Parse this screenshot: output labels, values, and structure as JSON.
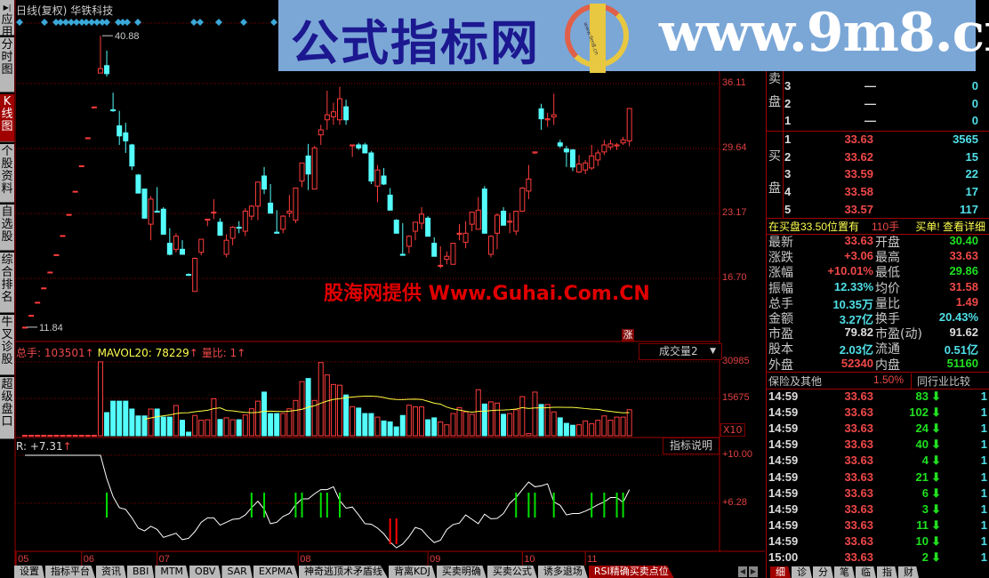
{
  "window": {
    "chart_type": "日线(复权)",
    "stock_name": "华铁科技"
  },
  "left_tabs": [
    {
      "label": "应用",
      "icon": "play-end-icon"
    },
    {
      "label": "分时图"
    },
    {
      "label": "K线图",
      "active": true
    },
    {
      "label": "个股资料"
    },
    {
      "label": "自选股"
    },
    {
      "label": "综合排名"
    },
    {
      "label": "牛叉诊股"
    },
    {
      "label": "超级盘口"
    }
  ],
  "banner": {
    "name": "公式指标网",
    "url": "www.9m8.cn",
    "logo_text": "www.9m8.cn"
  },
  "watermark": "股海网提供 Www.Guhai.Com.CN",
  "colors": {
    "up": "#ff3c3c",
    "down": "#54fcfc",
    "ma": "#ffff40",
    "rsi_line": "#ffffff",
    "buy_signal": "#00e000",
    "sell_signal": "#ff0000",
    "grid": "#8a0000",
    "diamond": "#3aa8d8"
  },
  "price_chart": {
    "axis_ticks": [
      "36.11",
      "29.64",
      "23.17",
      "16.70"
    ],
    "high_label": "40.88",
    "low_label": "11.84",
    "limit_badge": "涨",
    "candles": [
      [
        11.84,
        11.84,
        11.84,
        11.84
      ],
      [
        13.02,
        13.02,
        13.02,
        13.02
      ],
      [
        14.32,
        14.32,
        14.32,
        14.32
      ],
      [
        15.75,
        15.75,
        15.75,
        15.75
      ],
      [
        17.33,
        17.33,
        17.33,
        17.33
      ],
      [
        19.06,
        19.06,
        19.06,
        19.06
      ],
      [
        20.97,
        20.97,
        20.97,
        20.97
      ],
      [
        23.07,
        23.07,
        23.07,
        23.07
      ],
      [
        25.38,
        25.38,
        25.38,
        25.38
      ],
      [
        27.92,
        27.92,
        27.92,
        27.92
      ],
      [
        30.71,
        30.71,
        30.71,
        30.71
      ],
      [
        33.78,
        33.78,
        33.78,
        33.78
      ],
      [
        37.16,
        40.88,
        37.16,
        37.6
      ],
      [
        37.9,
        39.4,
        36.8,
        37.1
      ],
      [
        33.5,
        35.2,
        33.3,
        33.4
      ],
      [
        31.9,
        33.4,
        30.0,
        30.9
      ],
      [
        31.2,
        32.2,
        29.2,
        30.4
      ],
      [
        30.0,
        30.1,
        27.5,
        27.9
      ],
      [
        27.0,
        27.1,
        25.2,
        25.2
      ],
      [
        25.6,
        25.6,
        22.7,
        22.7
      ],
      [
        22.1,
        24.9,
        20.5,
        24.6
      ],
      [
        23.4,
        25.8,
        23.3,
        23.3
      ],
      [
        23.6,
        23.8,
        21.1,
        21.1
      ],
      [
        20.2,
        21.7,
        19.0,
        19.1
      ],
      [
        19.6,
        21.2,
        19.3,
        20.9
      ],
      [
        19.6,
        20.5,
        19.1,
        19.1
      ],
      [
        17.1,
        17.2,
        17.0,
        17.0
      ],
      [
        15.4,
        18.8,
        15.4,
        18.7
      ],
      [
        19.3,
        20.6,
        19.0,
        20.6
      ],
      [
        22.5,
        22.6,
        21.9,
        22.6
      ],
      [
        23.3,
        24.6,
        22.6,
        23.3
      ],
      [
        22.3,
        22.7,
        21.0,
        21.0
      ],
      [
        19.1,
        21.1,
        18.8,
        20.5
      ],
      [
        20.7,
        21.9,
        20.0,
        21.8
      ],
      [
        21.8,
        22.4,
        21.2,
        21.7
      ],
      [
        21.4,
        23.7,
        20.9,
        23.4
      ],
      [
        22.9,
        24.0,
        22.5,
        23.9
      ],
      [
        23.9,
        26.3,
        22.5,
        26.3
      ],
      [
        26.9,
        27.8,
        25.1,
        25.6
      ],
      [
        24.2,
        26.1,
        23.2,
        23.2
      ],
      [
        21.3,
        23.5,
        21.2,
        21.2
      ],
      [
        21.6,
        23.0,
        21.2,
        22.9
      ],
      [
        23.2,
        25.0,
        22.8,
        23.4
      ],
      [
        22.5,
        25.7,
        22.2,
        25.7
      ],
      [
        26.4,
        28.2,
        25.8,
        28.2
      ],
      [
        28.9,
        30.1,
        25.5,
        27.1
      ],
      [
        25.6,
        29.9,
        25.6,
        29.7
      ],
      [
        31.0,
        32.0,
        30.0,
        31.5
      ],
      [
        32.5,
        35.4,
        31.5,
        33.0
      ],
      [
        32.8,
        34.2,
        32.0,
        33.3
      ],
      [
        32.5,
        35.8,
        32.0,
        34.6
      ],
      [
        33.8,
        34.5,
        32.0,
        32.5
      ],
      [
        29.9,
        30.0,
        28.8,
        30.0
      ],
      [
        30.0,
        30.2,
        29.5,
        29.7
      ],
      [
        30.0,
        30.2,
        29.2,
        29.2
      ],
      [
        29.2,
        29.4,
        26.1,
        26.4
      ],
      [
        25.9,
        28.0,
        24.3,
        27.5
      ],
      [
        26.9,
        27.7,
        26.0,
        26.1
      ],
      [
        25.0,
        25.7,
        23.5,
        23.5
      ],
      [
        22.5,
        22.6,
        21.2,
        21.2
      ],
      [
        19.1,
        22.2,
        19.0,
        19.0
      ],
      [
        19.9,
        21.0,
        19.2,
        20.9
      ],
      [
        21.4,
        22.3,
        20.5,
        22.3
      ],
      [
        22.2,
        23.8,
        21.6,
        23.1
      ],
      [
        22.7,
        22.9,
        20.9,
        20.9
      ],
      [
        20.2,
        20.8,
        18.9,
        18.9
      ],
      [
        18.0,
        19.9,
        17.7,
        18.0
      ],
      [
        18.6,
        19.4,
        18.1,
        18.9
      ],
      [
        18.1,
        20.2,
        18.1,
        20.2
      ],
      [
        21.1,
        22.1,
        20.5,
        21.2
      ],
      [
        20.3,
        22.4,
        19.7,
        21.2
      ],
      [
        22.1,
        23.3,
        21.4,
        23.3
      ],
      [
        21.6,
        24.8,
        21.6,
        23.5
      ],
      [
        25.6,
        25.9,
        21.2,
        21.2
      ],
      [
        19.1,
        21.0,
        18.8,
        20.9
      ],
      [
        21.2,
        23.2,
        19.6,
        23.0
      ],
      [
        23.4,
        23.8,
        22.0,
        22.0
      ],
      [
        22.3,
        23.2,
        21.2,
        22.4
      ],
      [
        21.4,
        23.4,
        21.0,
        23.4
      ],
      [
        23.4,
        25.8,
        23.4,
        25.7
      ],
      [
        25.4,
        28.0,
        24.6,
        26.6
      ],
      [
        29.2,
        29.3,
        29.1,
        29.3
      ],
      [
        33.6,
        34.1,
        31.5,
        32.6
      ],
      [
        32.5,
        33.2,
        31.8,
        32.6
      ],
      [
        32.8,
        35.1,
        32.0,
        33.0
      ],
      [
        30.2,
        30.5,
        29.7,
        29.9
      ],
      [
        29.6,
        29.9,
        27.8,
        29.3
      ],
      [
        29.5,
        29.6,
        27.4,
        27.8
      ],
      [
        27.3,
        29.0,
        27.2,
        28.1
      ],
      [
        27.5,
        28.5,
        27.1,
        28.2
      ],
      [
        27.7,
        30.0,
        27.5,
        28.9
      ],
      [
        28.5,
        29.5,
        27.9,
        29.2
      ],
      [
        29.3,
        30.5,
        29.0,
        30.0
      ],
      [
        29.8,
        30.5,
        29.5,
        30.1
      ],
      [
        29.9,
        30.2,
        29.5,
        30.0
      ],
      [
        30.2,
        30.8,
        30.0,
        30.5
      ],
      [
        30.4,
        33.63,
        29.86,
        33.63
      ]
    ]
  },
  "volume": {
    "total_label": "总手: 103501",
    "mavol_label": "MAVOL20: 78229",
    "ratio_label": "量比: 1",
    "dropdown": "成交量2",
    "axis_ticks": [
      "30985",
      "15675"
    ],
    "multiplier": "X10",
    "values": [
      200,
      200,
      200,
      200,
      200,
      200,
      200,
      200,
      200,
      200,
      200,
      200,
      30985,
      9700,
      14500,
      14500,
      14500,
      11200,
      8300,
      8300,
      11200,
      11200,
      7800,
      7800,
      12700,
      6500,
      1500,
      8500,
      6500,
      6700,
      15500,
      6800,
      7500,
      6700,
      6700,
      8700,
      11300,
      14500,
      18300,
      9300,
      9300,
      9300,
      11300,
      14800,
      22700,
      24000,
      14800,
      30700,
      25500,
      21500,
      21200,
      17100,
      12200,
      11600,
      9300,
      9300,
      7800,
      6200,
      5800,
      3700,
      8500,
      12800,
      12100,
      12100,
      6700,
      7500,
      5800,
      4600,
      9300,
      11800,
      10000,
      9000,
      19300,
      13300,
      14200,
      13700,
      9000,
      9300,
      10900,
      16400,
      900,
      18300,
      13100,
      13100,
      10000,
      7500,
      5200,
      4400,
      4600,
      6200,
      5000,
      6500,
      8300,
      6500,
      7800,
      7800,
      10900
    ]
  },
  "rsi": {
    "label": "R: +7.31",
    "help_button": "指标说明",
    "axis_ticks": [
      "+10.00",
      "+6.28"
    ],
    "values": [
      10,
      10,
      10,
      10,
      10,
      10,
      10,
      10,
      10,
      10,
      10,
      10,
      10,
      8.2,
      6.8,
      5.94,
      5.81,
      5.15,
      4.36,
      4.14,
      4.5,
      4.25,
      3.64,
      3.8,
      3.96,
      3.46,
      3.57,
      4.09,
      4.81,
      5.15,
      5.15,
      4.59,
      4.81,
      5.04,
      5.08,
      5.38,
      5.94,
      6.44,
      5.83,
      4.7,
      4.81,
      5.26,
      5.49,
      6.17,
      6.62,
      6.62,
      7.02,
      7.34,
      7.34,
      7.56,
      6.5,
      5.9,
      5.99,
      5.38,
      4.7,
      4.66,
      4.36,
      3.91,
      3.28,
      2.83,
      3.12,
      3.69,
      4.41,
      4.25,
      3.69,
      3.24,
      3.42,
      4.25,
      4.63,
      4.75,
      5.38,
      5.04,
      4.7,
      5.44,
      5.08,
      5.11,
      5.49,
      6.28,
      6.73,
      7.34,
      7.93,
      7.56,
      7.63,
      7.79,
      6.39,
      6.12,
      5.38,
      5.49,
      5.49,
      5.67,
      5.9,
      6.17,
      6.39,
      6.73,
      6.73,
      6.35,
      7.34
    ],
    "buy_signals": [
      13,
      36,
      38,
      43,
      44,
      47,
      48,
      50,
      78,
      80,
      81,
      84,
      90,
      92,
      94,
      95
    ],
    "sell_signals": [
      58,
      59
    ]
  },
  "date_axis": [
    {
      "label": "05",
      "index": -1.4
    },
    {
      "label": "06",
      "index": 9
    },
    {
      "label": "07",
      "index": 21
    },
    {
      "label": "08",
      "index": 43.4
    },
    {
      "label": "09",
      "index": 64
    },
    {
      "label": "10",
      "index": 79
    },
    {
      "label": "11",
      "index": 89
    }
  ],
  "bottom_tabs": [
    {
      "label": "设置"
    },
    {
      "label": "指标平台"
    },
    {
      "label": "资讯"
    },
    {
      "label": "BBI"
    },
    {
      "label": "MTM"
    },
    {
      "label": "OBV"
    },
    {
      "label": "SAR"
    },
    {
      "label": "EXPMA"
    },
    {
      "label": "神奇逃顶术矛盾线"
    },
    {
      "label": "背离KDJ"
    },
    {
      "label": "买卖明确"
    },
    {
      "label": "买卖公式"
    },
    {
      "label": "诱多退场"
    },
    {
      "label": "RSI精确买卖点位",
      "active": true
    }
  ],
  "right_panel": {
    "sell_side_label": [
      "卖",
      "盘"
    ],
    "buy_side_label": [
      "买",
      "盘"
    ],
    "sell_rows": [
      {
        "level": "3",
        "price": "—",
        "volume": "0"
      },
      {
        "level": "2",
        "price": "—",
        "volume": "0"
      },
      {
        "level": "1",
        "price": "—",
        "volume": "0"
      }
    ],
    "buy_rows": [
      {
        "level": "1",
        "price": "33.63",
        "volume": "3565"
      },
      {
        "level": "2",
        "price": "33.62",
        "volume": "15"
      },
      {
        "level": "3",
        "price": "33.59",
        "volume": "22"
      },
      {
        "level": "4",
        "price": "33.58",
        "volume": "17"
      },
      {
        "level": "5",
        "price": "33.57",
        "volume": "117"
      }
    ],
    "notice": {
      "prefix": "在买盘33.50位置有",
      "amount": "110手",
      "suffix": "买单! 查看详细"
    },
    "stats": [
      {
        "l1": "最新",
        "v1": "33.63",
        "c1": "red",
        "l2": "开盘",
        "v2": "30.40",
        "c2": "green"
      },
      {
        "l1": "涨跌",
        "v1": "+3.06",
        "c1": "red",
        "l2": "最高",
        "v2": "33.63",
        "c2": "red"
      },
      {
        "l1": "涨幅",
        "v1": "+10.01%",
        "c1": "red",
        "l2": "最低",
        "v2": "29.86",
        "c2": "green"
      },
      {
        "l1": "振幅",
        "v1": "12.33%",
        "c1": "cyan",
        "l2": "均价",
        "v2": "31.58",
        "c2": "red"
      },
      {
        "l1": "总手",
        "v1": "10.35万",
        "c1": "cyan",
        "l2": "量比",
        "v2": "1.49",
        "c2": "red"
      },
      {
        "l1": "金额",
        "v1": "3.27亿",
        "c1": "cyan",
        "l2": "换手",
        "v2": "20.43%",
        "c2": "cyan"
      },
      {
        "l1": "市盈",
        "v1": "79.82",
        "c1": "white",
        "l2": "市盈(动)",
        "v2": "91.62",
        "c2": "white"
      },
      {
        "l1": "股本",
        "v1": "2.03亿",
        "c1": "cyan",
        "l2": "流通",
        "v2": "0.51亿",
        "c2": "cyan"
      },
      {
        "l1": "外盘",
        "v1": "52340",
        "c1": "red",
        "l2": "内盘",
        "v2": "51160",
        "c2": "green"
      }
    ],
    "industry": {
      "name": "保险及其他",
      "change": "1.50%",
      "compare_button": "同行业比较"
    },
    "ticks": [
      {
        "time": "14:59",
        "price": "33.63",
        "volume": "83",
        "dir": "down",
        "count": "1"
      },
      {
        "time": "14:59",
        "price": "33.63",
        "volume": "102",
        "dir": "down",
        "count": "1"
      },
      {
        "time": "14:59",
        "price": "33.63",
        "volume": "24",
        "dir": "down",
        "count": "1"
      },
      {
        "time": "14:59",
        "price": "33.63",
        "volume": "40",
        "dir": "down",
        "count": "1"
      },
      {
        "time": "14:59",
        "price": "33.63",
        "volume": "4",
        "dir": "down",
        "count": "1"
      },
      {
        "time": "14:59",
        "price": "33.63",
        "volume": "21",
        "dir": "down",
        "count": "1"
      },
      {
        "time": "14:59",
        "price": "33.63",
        "volume": "6",
        "dir": "down",
        "count": "1"
      },
      {
        "time": "14:59",
        "price": "33.63",
        "volume": "3",
        "dir": "down",
        "count": "1"
      },
      {
        "time": "14:59",
        "price": "33.63",
        "volume": "11",
        "dir": "down",
        "count": "1"
      },
      {
        "time": "14:59",
        "price": "33.63",
        "volume": "10",
        "dir": "down",
        "count": "1"
      },
      {
        "time": "15:00",
        "price": "33.63",
        "volume": "2",
        "dir": "down",
        "count": "1"
      }
    ],
    "tabs": [
      {
        "label": "细",
        "active": true
      },
      {
        "label": "诊"
      },
      {
        "label": "分"
      },
      {
        "label": "笔"
      },
      {
        "label": "临"
      },
      {
        "label": "指"
      },
      {
        "label": "财"
      }
    ]
  }
}
